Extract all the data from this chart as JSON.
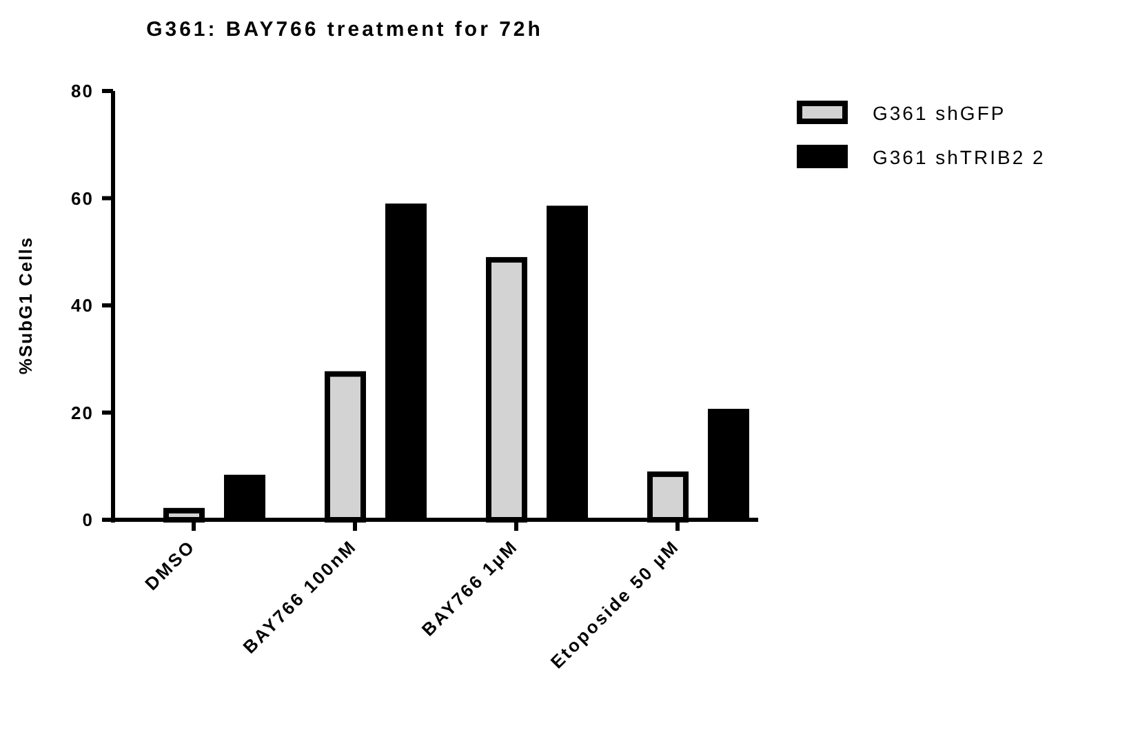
{
  "chart_data": {
    "type": "bar",
    "title": "G361: BAY766 treatment for 72h",
    "ylabel": "%SubG1 Cells",
    "categories": [
      "DMSO",
      "BAY766 100nM",
      "BAY766 1µM",
      "Etoposide 50 µM"
    ],
    "series": [
      {
        "name": "G361 shGFP",
        "color": "#d3d3d3",
        "values": [
          1.7,
          27.2,
          48.5,
          8.5
        ]
      },
      {
        "name": "G361 shTRIB2 2",
        "color": "#000000",
        "values": [
          8.4,
          59.0,
          58.6,
          20.7
        ]
      }
    ],
    "ylim": [
      0,
      80
    ],
    "yticks": [
      0,
      20,
      40,
      60,
      80
    ],
    "grid": false,
    "legend": "right"
  }
}
